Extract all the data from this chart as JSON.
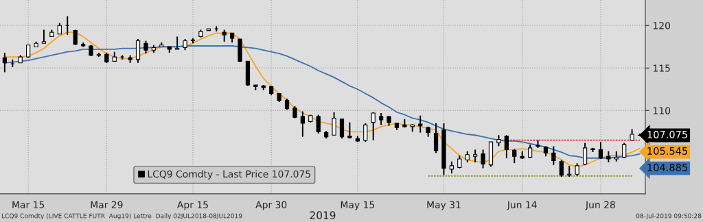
{
  "chart_data": {
    "type": "candlestick",
    "xlabel": "2019",
    "categories": [
      null,
      null,
      null,
      "Mar 15",
      null,
      null,
      null,
      null,
      null,
      null,
      null,
      null,
      null,
      "Mar 29",
      null,
      null,
      null,
      null,
      null,
      null,
      null,
      null,
      null,
      null,
      "Apr 15",
      null,
      null,
      null,
      null,
      null,
      null,
      null,
      null,
      null,
      "Apr 30",
      null,
      null,
      null,
      null,
      null,
      null,
      null,
      null,
      null,
      null,
      "May 15",
      null,
      null,
      null,
      null,
      null,
      null,
      null,
      null,
      null,
      null,
      "May 31",
      null,
      null,
      null,
      null,
      null,
      null,
      null,
      null,
      null,
      "Jun 14",
      null,
      null,
      null,
      null,
      null,
      null,
      null,
      null,
      null,
      "Jun 28",
      null,
      null,
      null,
      null,
      null
    ],
    "series": [
      {
        "name": "LCQ9 Comdty - Last Price 107.075",
        "color": "#000000",
        "ohlc": [
          [
            116.2,
            116.8,
            114.5,
            115.6
          ],
          [
            115.5,
            116.0,
            115.1,
            115.5
          ],
          [
            115.6,
            116.5,
            115.6,
            116.3
          ],
          [
            116.3,
            117.7,
            116.2,
            117.7
          ],
          [
            117.5,
            118.1,
            117.5,
            117.9
          ],
          [
            117.9,
            119.5,
            117.9,
            118.1
          ],
          [
            118.7,
            119.5,
            118.7,
            119.2
          ],
          [
            119.0,
            120.3,
            119.0,
            120.0
          ],
          [
            120.0,
            121.1,
            118.9,
            120.0
          ],
          [
            119.4,
            119.5,
            117.7,
            117.8
          ],
          [
            117.8,
            118.0,
            117.5,
            117.6
          ],
          [
            117.6,
            117.7,
            116.4,
            116.5
          ],
          [
            116.6,
            116.8,
            116.3,
            116.5
          ],
          [
            116.6,
            116.8,
            115.6,
            115.7
          ],
          [
            115.8,
            116.9,
            115.8,
            116.3
          ],
          [
            116.3,
            116.5,
            116.0,
            116.3
          ],
          [
            116.2,
            116.5,
            115.6,
            116.0
          ],
          [
            116.0,
            118.4,
            115.6,
            118.2
          ],
          [
            117.9,
            118.2,
            116.7,
            117.1
          ],
          [
            117.1,
            117.7,
            116.8,
            117.4
          ],
          [
            117.5,
            118.0,
            117.5,
            117.7
          ],
          [
            117.5,
            117.5,
            116.8,
            117.2
          ],
          [
            117.2,
            118.7,
            117.2,
            117.3
          ],
          [
            117.4,
            118.4,
            117.1,
            118.2
          ],
          [
            118.2,
            118.5,
            117.9,
            118.3
          ],
          [
            118.7,
            119.5,
            118.6,
            119.3
          ],
          [
            119.4,
            119.6,
            119.4,
            119.6
          ],
          [
            119.6,
            119.9,
            119.3,
            119.6
          ],
          [
            119.2,
            119.5,
            118.1,
            118.9
          ],
          [
            119.1,
            119.1,
            118.0,
            118.5
          ],
          [
            118.4,
            118.4,
            115.7,
            115.8
          ],
          [
            115.8,
            115.8,
            112.9,
            113.0
          ],
          [
            113.0,
            113.0,
            112.4,
            112.8
          ],
          [
            112.9,
            113.0,
            112.4,
            112.7
          ],
          [
            112.8,
            112.9,
            111.8,
            112.0
          ],
          [
            112.0,
            112.0,
            111.0,
            111.2
          ],
          [
            111.2,
            111.4,
            110.1,
            110.2
          ],
          [
            110.3,
            110.5,
            109.1,
            109.2
          ],
          [
            109.3,
            109.9,
            106.9,
            108.5
          ],
          [
            108.7,
            109.5,
            108.6,
            109.4
          ],
          [
            109.3,
            109.5,
            107.3,
            107.5
          ],
          [
            107.4,
            107.6,
            106.7,
            106.9
          ],
          [
            107.1,
            109.8,
            107.1,
            109.1
          ],
          [
            109.0,
            109.0,
            106.7,
            106.9
          ],
          [
            107.0,
            108.6,
            106.7,
            106.8
          ],
          [
            106.7,
            107.0,
            106.3,
            106.4
          ],
          [
            106.5,
            108.5,
            106.3,
            108.3
          ],
          [
            108.6,
            109.8,
            106.5,
            109.7
          ],
          [
            109.3,
            109.7,
            108.3,
            108.9
          ],
          [
            109.3,
            109.3,
            108.2,
            108.6
          ],
          [
            108.5,
            108.5,
            107.7,
            108.0
          ],
          [
            108.3,
            109.0,
            108.0,
            108.1
          ],
          [
            108.1,
            108.4,
            107.5,
            108.3
          ],
          [
            108.4,
            109.4,
            107.4,
            108.2
          ],
          [
            108.0,
            108.1,
            106.9,
            107.4
          ],
          [
            107.3,
            108.5,
            105.0,
            105.3
          ],
          [
            107.7,
            108.5,
            102.4,
            103.2
          ],
          [
            103.1,
            104.0,
            102.6,
            103.5
          ],
          [
            103.3,
            104.7,
            103.2,
            104.3
          ],
          [
            104.2,
            105.2,
            103.9,
            104.8
          ],
          [
            104.6,
            105.4,
            103.9,
            104.8
          ],
          [
            104.9,
            105.4,
            103.2,
            103.7
          ],
          [
            103.6,
            106.3,
            103.4,
            106.3
          ],
          [
            106.2,
            107.1,
            105.8,
            106.6
          ],
          [
            107.0,
            107.1,
            104.4,
            105.4
          ],
          [
            105.3,
            105.5,
            103.8,
            104.6
          ],
          [
            104.6,
            105.2,
            104.3,
            104.4
          ],
          [
            104.5,
            106.0,
            104.4,
            105.6
          ],
          [
            105.9,
            106.5,
            105.6,
            105.8
          ],
          [
            105.7,
            105.8,
            104.6,
            105.0
          ],
          [
            105.0,
            105.8,
            103.6,
            104.1
          ],
          [
            104.0,
            104.2,
            102.2,
            102.4
          ],
          [
            102.4,
            103.5,
            102.2,
            102.5
          ],
          [
            102.5,
            103.8,
            102.3,
            103.5
          ],
          [
            103.7,
            106.2,
            103.6,
            105.6
          ],
          [
            105.5,
            105.6,
            105.1,
            105.4
          ],
          [
            105.4,
            106.3,
            104.3,
            104.4
          ],
          [
            104.6,
            105.2,
            103.9,
            104.3
          ],
          [
            104.3,
            105.2,
            104.0,
            104.5
          ],
          [
            104.5,
            106.2,
            104.4,
            106.0
          ],
          [
            106.5,
            107.8,
            106.5,
            107.2
          ],
          [
            107.1,
            107.3,
            107.0,
            107.075
          ]
        ]
      },
      {
        "type": "line",
        "color": "#f5a623",
        "values": [
          116.3,
          116.3,
          116.3,
          116.4,
          116.8,
          117.3,
          118.1,
          118.8,
          119.2,
          119.2,
          118.7,
          118.0,
          117.3,
          116.7,
          116.3,
          116.1,
          116.1,
          116.4,
          116.8,
          117.1,
          117.5,
          117.5,
          117.5,
          117.6,
          117.9,
          118.4,
          118.8,
          119.1,
          119.1,
          119.1,
          118.4,
          116.8,
          115.2,
          113.8,
          112.8,
          112.0,
          111.2,
          110.3,
          109.7,
          109.3,
          108.7,
          108.5,
          108.3,
          107.8,
          107.5,
          107.5,
          107.5,
          107.7,
          108.1,
          108.3,
          108.5,
          108.3,
          108.3,
          108.1,
          107.9,
          107.7,
          106.3,
          105.5,
          104.7,
          104.2,
          104.0,
          103.9,
          104.2,
          105.2,
          105.4,
          105.4,
          105.5,
          105.4,
          105.2,
          105.1,
          104.7,
          104.2,
          103.6,
          103.4,
          103.6,
          104.0,
          104.4,
          104.7,
          104.7,
          104.8,
          105.1,
          105.545
        ],
        "value_labels": [
          null,
          null,
          null,
          null,
          null,
          null,
          null,
          null,
          null,
          null,
          null,
          null,
          null,
          null,
          null,
          null,
          null,
          null,
          null,
          null,
          null,
          null,
          null,
          null,
          null,
          null,
          null,
          null,
          null,
          null,
          null,
          null,
          null,
          null,
          null,
          null,
          null,
          null,
          null,
          null,
          null,
          null,
          null,
          null,
          null,
          null,
          null,
          null,
          null,
          null,
          null,
          null,
          null,
          null,
          null,
          null,
          null,
          null,
          null,
          null,
          null,
          null,
          null,
          null,
          null,
          null,
          null,
          null,
          null,
          null,
          null,
          null,
          null,
          null,
          null,
          null,
          null,
          null,
          null,
          null,
          null,
          "105.545"
        ]
      },
      {
        "type": "line",
        "color": "#3d72b0",
        "values": [
          115.6,
          115.7,
          115.8,
          115.9,
          116.1,
          116.3,
          116.5,
          116.7,
          116.9,
          117.0,
          117.2,
          117.2,
          117.2,
          117.2,
          117.2,
          117.3,
          117.3,
          117.3,
          117.4,
          117.4,
          117.5,
          117.5,
          117.5,
          117.6,
          117.6,
          117.6,
          117.6,
          117.6,
          117.6,
          117.6,
          117.5,
          117.4,
          117.3,
          117.1,
          116.9,
          116.7,
          116.4,
          116.0,
          115.6,
          115.2,
          114.7,
          114.3,
          113.9,
          113.4,
          112.9,
          112.5,
          112.0,
          111.5,
          110.9,
          110.4,
          109.8,
          109.5,
          109.1,
          108.9,
          108.6,
          108.2,
          107.8,
          107.6,
          107.4,
          107.2,
          107.1,
          106.9,
          106.7,
          106.5,
          106.4,
          106.4,
          106.3,
          106.1,
          105.9,
          105.7,
          105.4,
          105.1,
          104.7,
          104.6,
          104.4,
          104.4,
          104.4,
          104.4,
          104.5,
          104.6,
          104.7,
          104.885
        ],
        "value_labels": [
          null,
          null,
          null,
          null,
          null,
          null,
          null,
          null,
          null,
          null,
          null,
          null,
          null,
          null,
          null,
          null,
          null,
          null,
          null,
          null,
          null,
          null,
          null,
          null,
          null,
          null,
          null,
          null,
          null,
          null,
          null,
          null,
          null,
          null,
          null,
          null,
          null,
          null,
          null,
          null,
          null,
          null,
          null,
          null,
          null,
          null,
          null,
          null,
          null,
          null,
          null,
          null,
          null,
          null,
          null,
          null,
          null,
          null,
          null,
          null,
          null,
          null,
          null,
          null,
          null,
          null,
          null,
          null,
          null,
          null,
          null,
          null,
          null,
          null,
          null,
          null,
          null,
          null,
          null,
          null,
          null,
          "104.885"
        ]
      },
      {
        "type": "line",
        "color": "#e03030",
        "line_style": "dotted",
        "values": [
          null,
          null,
          null,
          null,
          null,
          null,
          null,
          null,
          null,
          null,
          null,
          null,
          null,
          null,
          null,
          null,
          null,
          null,
          null,
          null,
          null,
          null,
          null,
          null,
          null,
          null,
          null,
          null,
          null,
          null,
          null,
          null,
          null,
          null,
          null,
          null,
          null,
          null,
          null,
          null,
          null,
          null,
          null,
          null,
          null,
          null,
          null,
          null,
          null,
          null,
          null,
          null,
          null,
          null,
          null,
          null,
          null,
          null,
          null,
          null,
          null,
          null,
          null,
          106.5,
          106.5,
          106.5,
          106.5,
          106.5,
          106.5,
          106.5,
          106.5,
          106.5,
          106.5,
          106.5,
          106.5,
          106.5,
          106.5,
          106.5,
          106.5,
          106.5,
          106.5,
          106.5
        ]
      },
      {
        "type": "line",
        "color": "#8a9a3a",
        "line_style": "dotted",
        "values": [
          null,
          null,
          null,
          null,
          null,
          null,
          null,
          null,
          null,
          null,
          null,
          null,
          null,
          null,
          null,
          null,
          null,
          null,
          null,
          null,
          null,
          null,
          null,
          null,
          null,
          null,
          null,
          null,
          null,
          null,
          null,
          null,
          null,
          null,
          null,
          null,
          null,
          null,
          null,
          null,
          null,
          null,
          null,
          null,
          null,
          null,
          null,
          null,
          null,
          null,
          null,
          null,
          null,
          null,
          102.3,
          102.3,
          102.3,
          102.3,
          102.3,
          102.3,
          102.3,
          102.3,
          102.3,
          102.3,
          102.3,
          102.3,
          102.3,
          102.3,
          102.3,
          102.3,
          102.3,
          102.3,
          102.3,
          102.3,
          102.3,
          102.3,
          102.3,
          102.3,
          102.3,
          102.3,
          102.3,
          null
        ]
      }
    ],
    "ylim": [
      100.2,
      123
    ],
    "yticks": [
      110,
      115,
      120
    ],
    "grid": true,
    "legend": "bottom left",
    "annotations": [
      "107.075",
      "LCQ9 Comdty (LIVE CATTLE FUTR  Aug19) Lettre  Daily 02JUL2018-08JUL2019",
      "08-Jul-2019 09:50:28"
    ]
  }
}
